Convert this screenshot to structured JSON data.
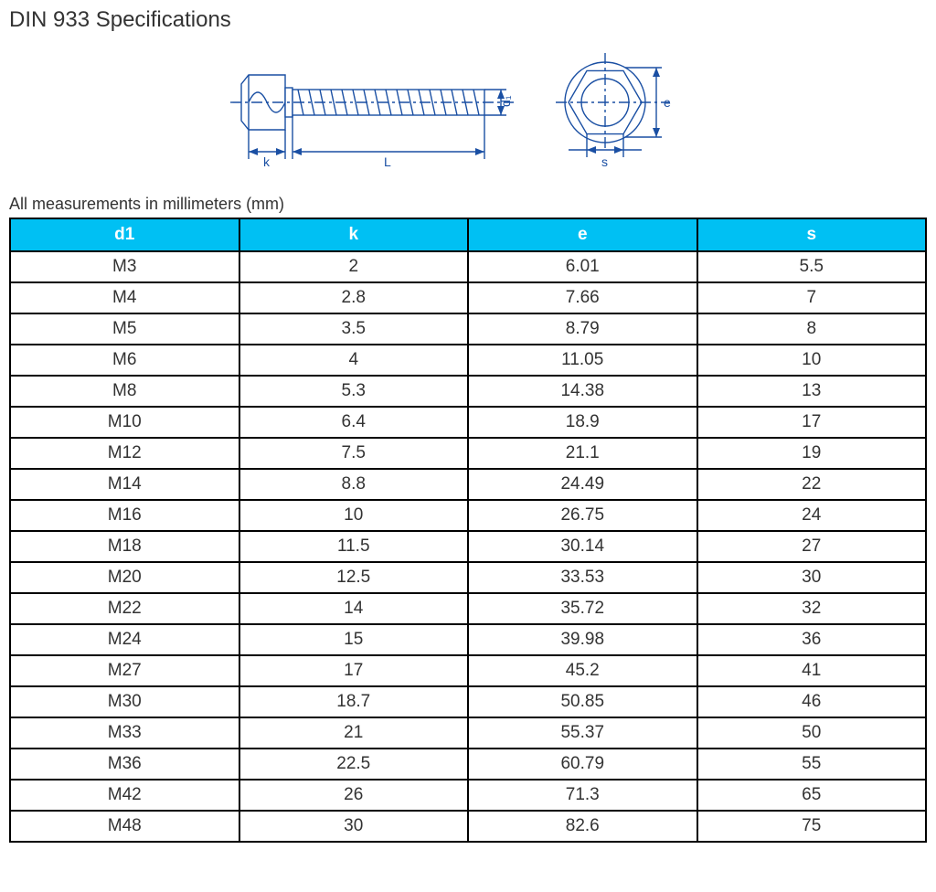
{
  "page": {
    "title": "DIN 933 Specifications",
    "subtitle": "All measurements in millimeters (mm)"
  },
  "diagram": {
    "labels": {
      "k": "k",
      "L": "L",
      "d1": "d₁",
      "s": "s",
      "e": "e"
    },
    "stroke_color": "#1a4fa3",
    "stroke_width": 1.4,
    "font_size_pt": 11
  },
  "table": {
    "header_bg": "#00c0f3",
    "header_fg": "#ffffff",
    "border_color": "#000000",
    "cell_font_size_pt": 14,
    "columns": [
      "d1",
      "k",
      "e",
      "s"
    ],
    "rows": [
      [
        "M3",
        "2",
        "6.01",
        "5.5"
      ],
      [
        "M4",
        "2.8",
        "7.66",
        "7"
      ],
      [
        "M5",
        "3.5",
        "8.79",
        "8"
      ],
      [
        "M6",
        "4",
        "11.05",
        "10"
      ],
      [
        "M8",
        "5.3",
        "14.38",
        "13"
      ],
      [
        "M10",
        "6.4",
        "18.9",
        "17"
      ],
      [
        "M12",
        "7.5",
        "21.1",
        "19"
      ],
      [
        "M14",
        "8.8",
        "24.49",
        "22"
      ],
      [
        "M16",
        "10",
        "26.75",
        "24"
      ],
      [
        "M18",
        "11.5",
        "30.14",
        "27"
      ],
      [
        "M20",
        "12.5",
        "33.53",
        "30"
      ],
      [
        "M22",
        "14",
        "35.72",
        "32"
      ],
      [
        "M24",
        "15",
        "39.98",
        "36"
      ],
      [
        "M27",
        "17",
        "45.2",
        "41"
      ],
      [
        "M30",
        "18.7",
        "50.85",
        "46"
      ],
      [
        "M33",
        "21",
        "55.37",
        "50"
      ],
      [
        "M36",
        "22.5",
        "60.79",
        "55"
      ],
      [
        "M42",
        "26",
        "71.3",
        "65"
      ],
      [
        "M48",
        "30",
        "82.6",
        "75"
      ]
    ]
  }
}
